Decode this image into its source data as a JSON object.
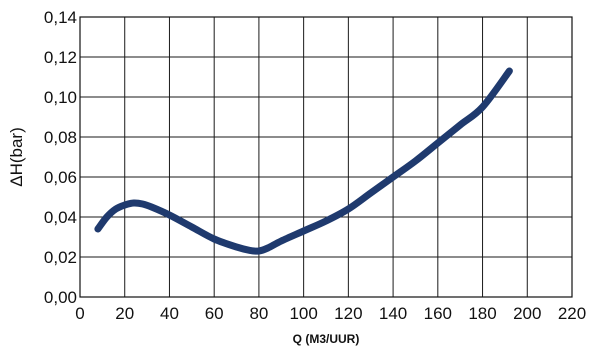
{
  "chart_data": {
    "type": "line",
    "xlabel": "Q (M3/UUR)",
    "ylabel": "ΔH(bar)",
    "xlim": [
      0,
      220
    ],
    "ylim": [
      0,
      0.14
    ],
    "x_ticks": [
      0,
      20,
      40,
      60,
      80,
      100,
      120,
      140,
      160,
      180,
      200,
      220
    ],
    "x_tick_labels": [
      "0",
      "20",
      "40",
      "60",
      "80",
      "100",
      "120",
      "140",
      "160",
      "180",
      "200",
      "220"
    ],
    "y_ticks": [
      0,
      0.02,
      0.04,
      0.06,
      0.08,
      0.1,
      0.12,
      0.14
    ],
    "y_tick_labels": [
      "0,00",
      "0,02",
      "0,04",
      "0,06",
      "0,08",
      "0,10",
      "0,12",
      "0,14"
    ],
    "grid": true,
    "series": [
      {
        "color": "#1f3a6e",
        "x": [
          8,
          12,
          16,
          20,
          24,
          28,
          32,
          40,
          50,
          60,
          70,
          76,
          80,
          84,
          90,
          100,
          110,
          120,
          130,
          140,
          150,
          160,
          170,
          180,
          192
        ],
        "y": [
          0.034,
          0.04,
          0.044,
          0.046,
          0.047,
          0.0465,
          0.045,
          0.041,
          0.035,
          0.029,
          0.025,
          0.0233,
          0.023,
          0.0245,
          0.028,
          0.033,
          0.038,
          0.044,
          0.052,
          0.06,
          0.068,
          0.077,
          0.086,
          0.095,
          0.113
        ]
      }
    ]
  }
}
